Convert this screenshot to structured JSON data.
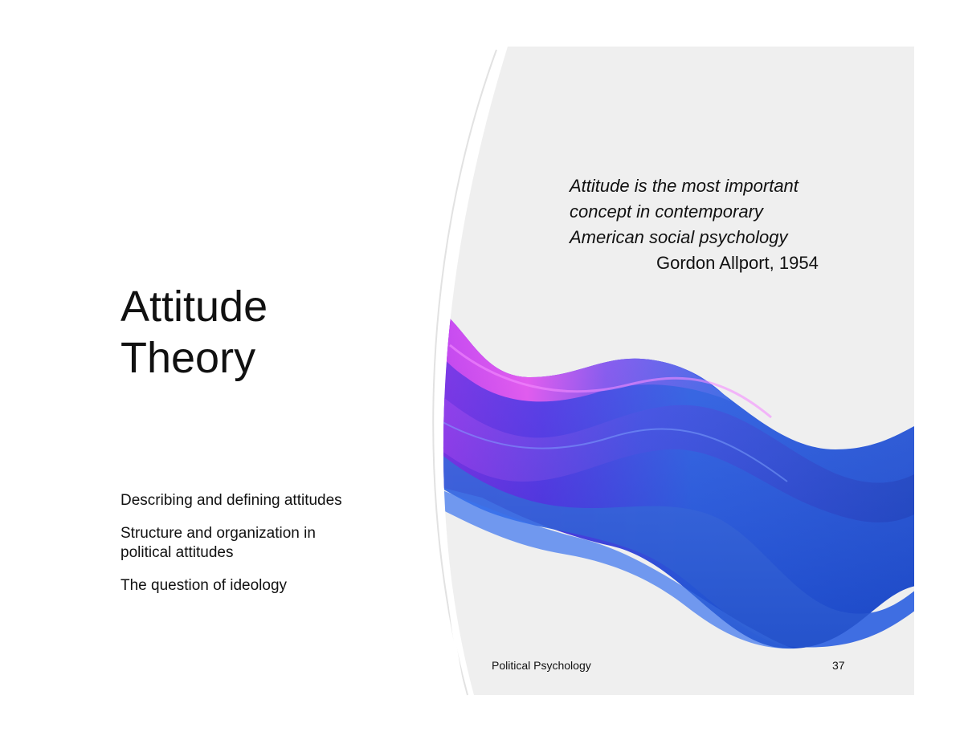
{
  "slide": {
    "title_lines": [
      "Attitude",
      "Theory"
    ],
    "bullets": [
      "Describing and defining attitudes",
      "Structure and organization in political attitudes",
      "The question of ideology"
    ],
    "quote": {
      "lines": [
        "Attitude is the most important",
        "concept in contemporary",
        "American social psychology"
      ],
      "author": "Gordon Allport, 1954"
    },
    "footer": {
      "label": "Political Psychology",
      "page_number": "37"
    }
  },
  "colors": {
    "panel": "#efefef",
    "wave_blue": "#1f55e0",
    "wave_magenta": "#e23cf0",
    "wave_violet": "#6a1fe0"
  }
}
